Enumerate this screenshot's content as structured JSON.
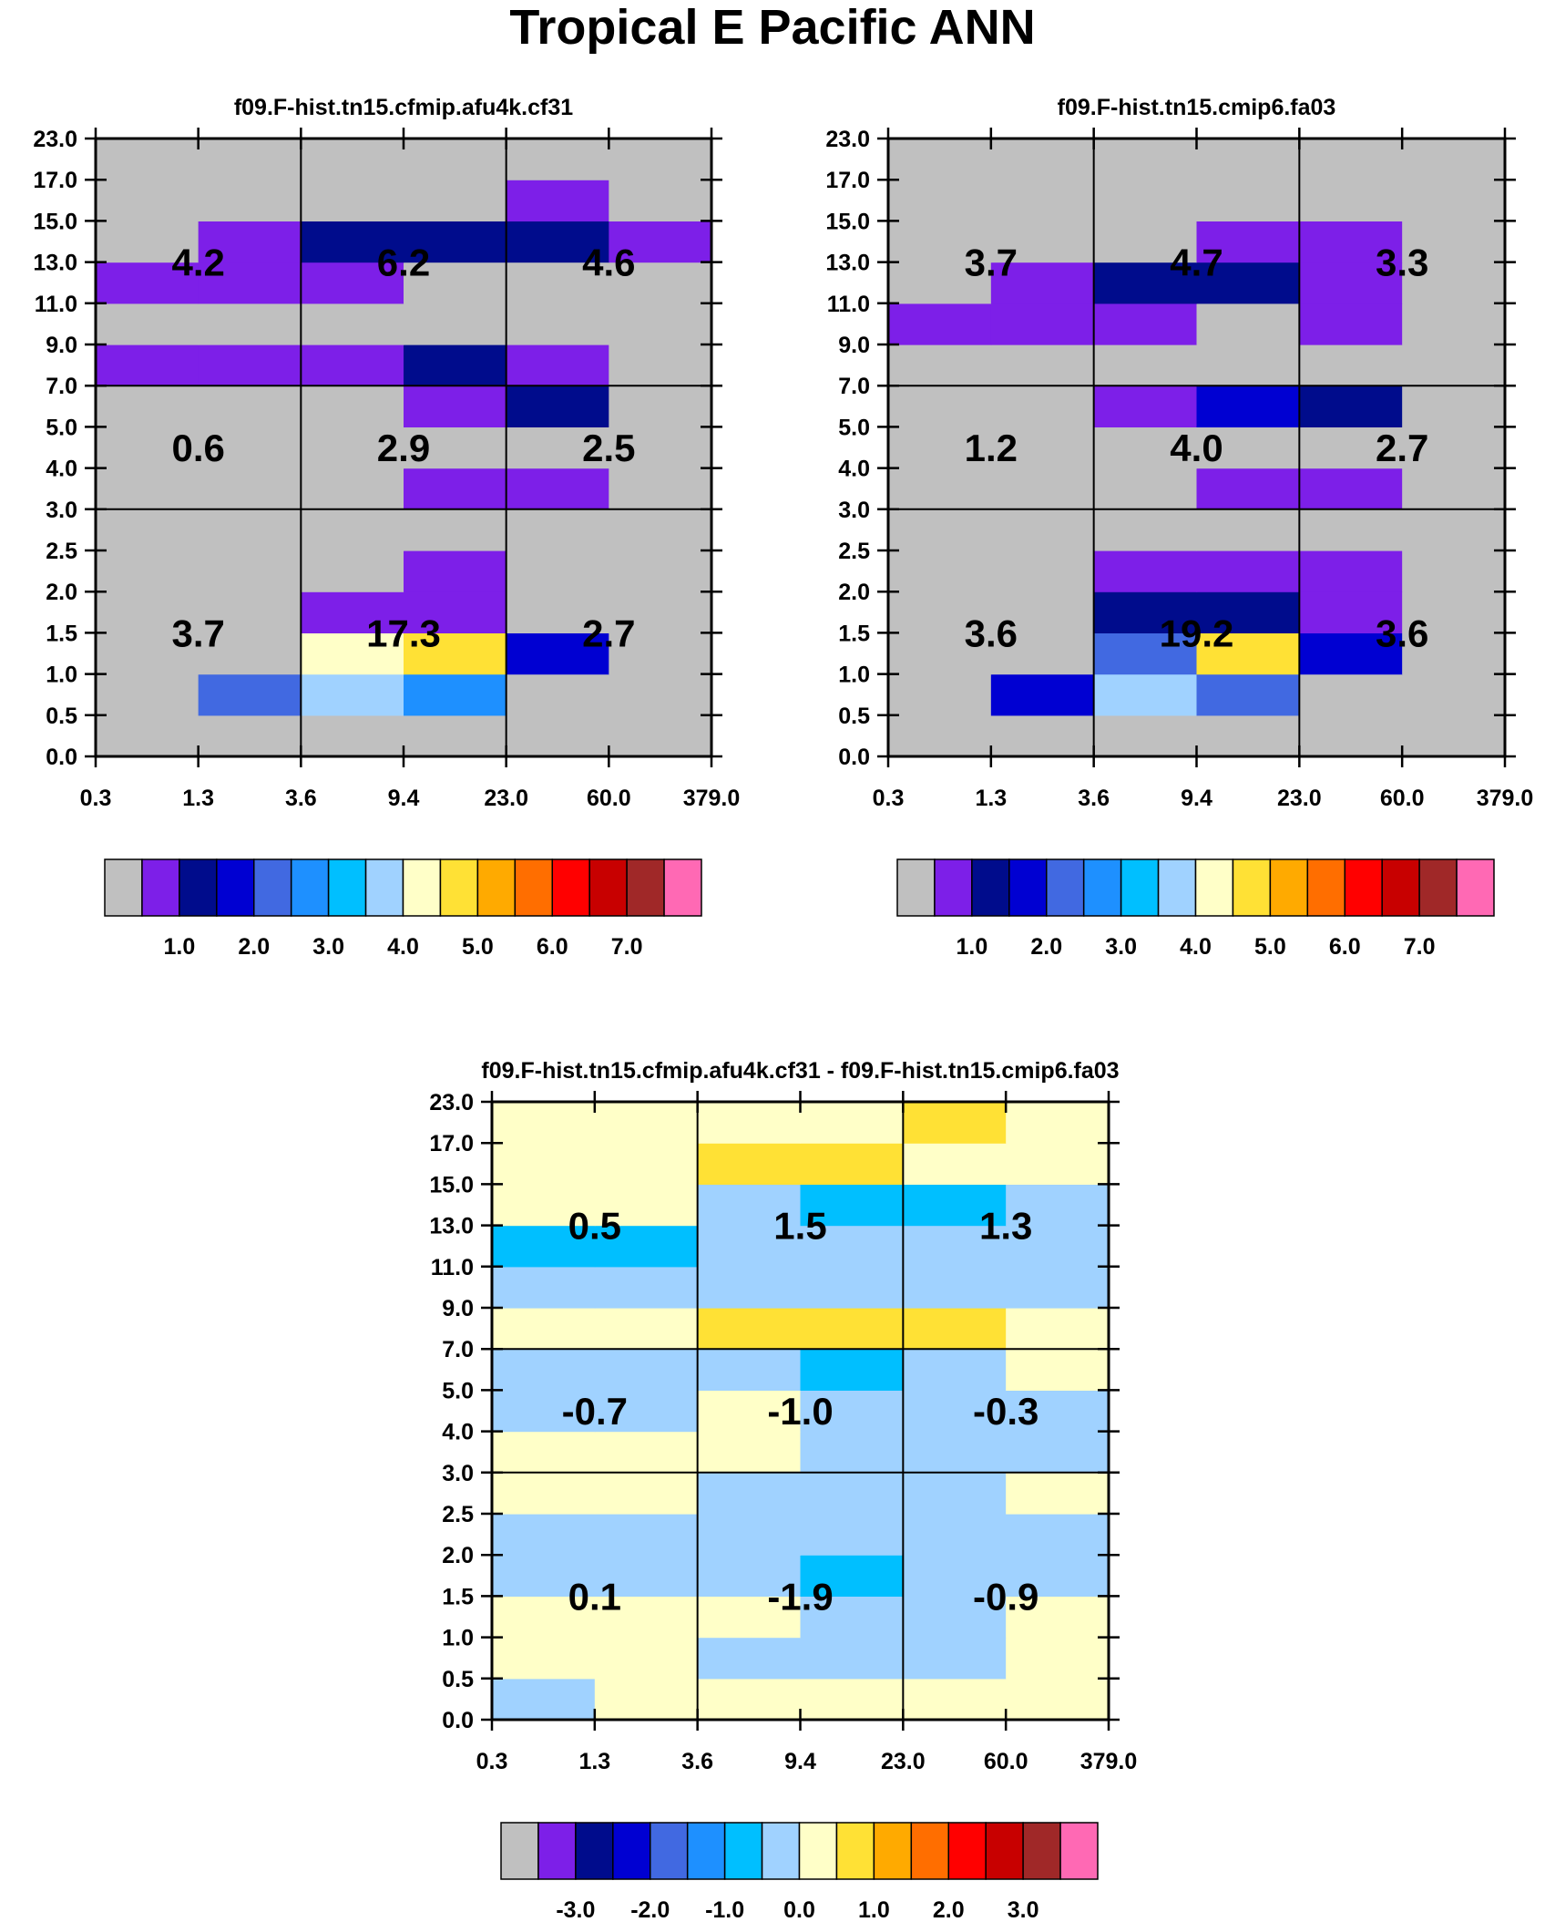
{
  "title": "Tropical E Pacific ANN",
  "chart_data": {
    "type": "heatmap",
    "x_tick_labels": [
      "0.3",
      "1.3",
      "3.6",
      "9.4",
      "23.0",
      "60.0",
      "379.0"
    ],
    "y_tick_labels": [
      "0.0",
      "0.5",
      "1.0",
      "1.5",
      "2.0",
      "2.5",
      "3.0",
      "4.0",
      "5.0",
      "7.0",
      "9.0",
      "11.0",
      "13.0",
      "15.0",
      "17.0",
      "23.0"
    ],
    "panels": [
      {
        "title": "f09.F-hist.tn15.cfmip.afu4k.cf31",
        "colorbar": "abs",
        "cells": [
          [
            0,
            0,
            0,
            0,
            0,
            0
          ],
          [
            0,
            4,
            7,
            5,
            0,
            0
          ],
          [
            0,
            0,
            8,
            9,
            3,
            0
          ],
          [
            0,
            0,
            1,
            1,
            0,
            0
          ],
          [
            0,
            0,
            0,
            1,
            0,
            0
          ],
          [
            0,
            0,
            0,
            0,
            0,
            0
          ],
          [
            0,
            0,
            0,
            1,
            1,
            0
          ],
          [
            0,
            0,
            0,
            0,
            0,
            0
          ],
          [
            0,
            0,
            0,
            1,
            2,
            0
          ],
          [
            1,
            1,
            1,
            2,
            1,
            0
          ],
          [
            0,
            0,
            0,
            0,
            0,
            0
          ],
          [
            1,
            1,
            1,
            0,
            0,
            0
          ],
          [
            0,
            1,
            2,
            2,
            2,
            1
          ],
          [
            0,
            0,
            0,
            0,
            1,
            0
          ],
          [
            0,
            0,
            0,
            0,
            0,
            0
          ]
        ],
        "box_values": [
          [
            "3.7",
            "17.3",
            "2.7"
          ],
          [
            "0.6",
            "2.9",
            "2.5"
          ],
          [
            "4.2",
            "6.2",
            "4.6"
          ]
        ]
      },
      {
        "title": "f09.F-hist.tn15.cmip6.fa03",
        "colorbar": "abs",
        "cells": [
          [
            0,
            0,
            0,
            0,
            0,
            0
          ],
          [
            0,
            3,
            7,
            4,
            0,
            0
          ],
          [
            0,
            0,
            4,
            9,
            3,
            0
          ],
          [
            0,
            0,
            2,
            2,
            1,
            0
          ],
          [
            0,
            0,
            1,
            1,
            1,
            0
          ],
          [
            0,
            0,
            0,
            0,
            0,
            0
          ],
          [
            0,
            0,
            0,
            1,
            1,
            0
          ],
          [
            0,
            0,
            0,
            0,
            0,
            0
          ],
          [
            0,
            0,
            1,
            3,
            2,
            0
          ],
          [
            0,
            0,
            0,
            0,
            0,
            0
          ],
          [
            1,
            1,
            1,
            0,
            1,
            0
          ],
          [
            0,
            1,
            2,
            2,
            1,
            0
          ],
          [
            0,
            0,
            0,
            1,
            1,
            0
          ],
          [
            0,
            0,
            0,
            0,
            0,
            0
          ],
          [
            0,
            0,
            0,
            0,
            0,
            0
          ]
        ],
        "box_values": [
          [
            "3.6",
            "19.2",
            "3.6"
          ],
          [
            "1.2",
            "4.0",
            "2.7"
          ],
          [
            "3.7",
            "4.7",
            "3.3"
          ]
        ]
      },
      {
        "title": "f09.F-hist.tn15.cfmip.afu4k.cf31 - f09.F-hist.tn15.cmip6.fa03",
        "colorbar": "diff",
        "cells": [
          [
            7,
            8,
            8,
            8,
            8,
            8
          ],
          [
            8,
            8,
            7,
            7,
            7,
            8
          ],
          [
            8,
            8,
            8,
            7,
            7,
            8
          ],
          [
            7,
            7,
            7,
            6,
            7,
            7
          ],
          [
            7,
            7,
            7,
            7,
            7,
            7
          ],
          [
            8,
            8,
            7,
            7,
            7,
            8
          ],
          [
            8,
            8,
            8,
            7,
            7,
            7
          ],
          [
            7,
            7,
            8,
            7,
            7,
            7
          ],
          [
            7,
            7,
            7,
            6,
            7,
            8
          ],
          [
            8,
            8,
            9,
            9,
            9,
            8
          ],
          [
            7,
            7,
            7,
            7,
            7,
            7
          ],
          [
            6,
            6,
            7,
            7,
            7,
            7
          ],
          [
            8,
            8,
            7,
            6,
            6,
            7
          ],
          [
            8,
            8,
            9,
            9,
            8,
            8
          ],
          [
            8,
            8,
            8,
            8,
            9,
            8
          ]
        ],
        "box_values": [
          [
            "0.1",
            "-1.9",
            "-0.9"
          ],
          [
            "-0.7",
            "-1.0",
            "-0.3"
          ],
          [
            "0.5",
            "1.5",
            "1.3"
          ]
        ]
      }
    ],
    "colorbars": {
      "abs": {
        "colors": [
          "#c0c0c0",
          "#7d1fe8",
          "#000c8c",
          "#0000d2",
          "#4169e1",
          "#1e90ff",
          "#00bfff",
          "#a0d2ff",
          "#ffffc8",
          "#ffe135",
          "#ffaa00",
          "#ff6e00",
          "#ff0000",
          "#c80000",
          "#a02828",
          "#ff69b4"
        ],
        "labels": [
          "1.0",
          "2.0",
          "3.0",
          "4.0",
          "5.0",
          "6.0",
          "7.0"
        ],
        "label_boundary_index": [
          3,
          5,
          7,
          9,
          11,
          13,
          15
        ]
      },
      "diff": {
        "colors": [
          "#c0c0c0",
          "#7d1fe8",
          "#000c8c",
          "#0000d2",
          "#4169e1",
          "#1e90ff",
          "#00bfff",
          "#a0d2ff",
          "#ffffc8",
          "#ffe135",
          "#ffaa00",
          "#ff6e00",
          "#ff0000",
          "#c80000",
          "#a02828",
          "#ff69b4"
        ],
        "labels": [
          "-3.0",
          "-2.0",
          "-1.0",
          "0.0",
          "1.0",
          "2.0",
          "3.0"
        ],
        "label_boundary_index": [
          3,
          5,
          7,
          9,
          11,
          13,
          15
        ]
      }
    }
  }
}
